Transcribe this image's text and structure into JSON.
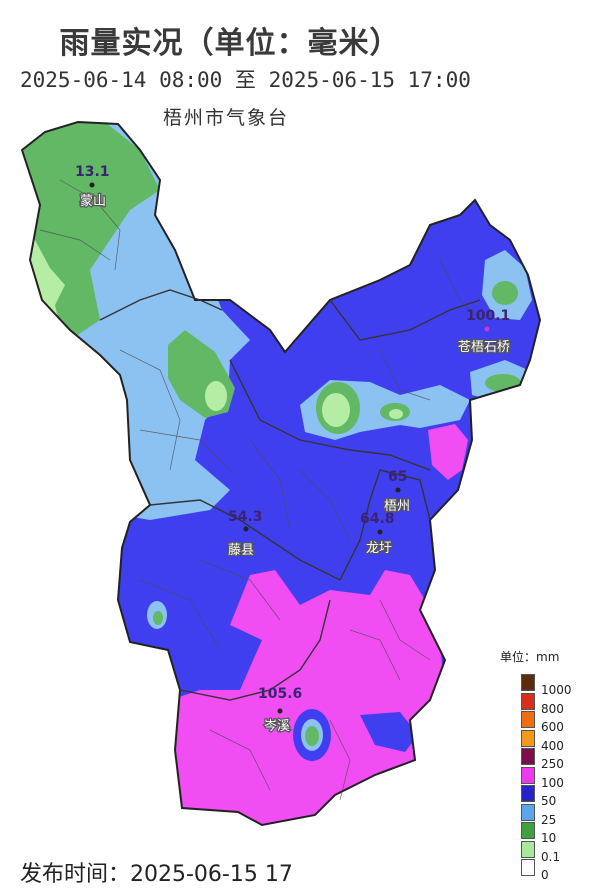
{
  "title": "雨量实况（单位：毫米）",
  "period": "2025-06-14 08:00 至 2025-06-15 17:00",
  "issuer": "梧州市气象台",
  "release_time": "发布时间：2025-06-15 17",
  "stations": [
    {
      "name": "蒙山",
      "value": "13.1"
    },
    {
      "name": "苍梧石桥",
      "value": "100.1"
    },
    {
      "name": "梧州",
      "value": "65"
    },
    {
      "name": "龙圩",
      "value": "64.8"
    },
    {
      "name": "藤县",
      "value": "54.3"
    },
    {
      "name": "岑溪",
      "value": "105.6"
    }
  ],
  "legend": {
    "title": "单位：mm",
    "classes": [
      {
        "label": "1000",
        "color": "#5a2d0c"
      },
      {
        "label": "800",
        "color": "#d6301c"
      },
      {
        "label": "600",
        "color": "#ee6d10"
      },
      {
        "label": "400",
        "color": "#f39a1d"
      },
      {
        "label": "250",
        "color": "#7a0f4a"
      },
      {
        "label": "100",
        "color": "#f039ef"
      },
      {
        "label": "50",
        "color": "#2424c8"
      },
      {
        "label": "25",
        "color": "#5aa6e8"
      },
      {
        "label": "10",
        "color": "#3ea13e"
      },
      {
        "label": "0.1",
        "color": "#a8e89a"
      },
      {
        "label": "0",
        "color": "#ffffff"
      }
    ]
  },
  "colors": {
    "band_10": "#62b865",
    "band_01": "#b4eda3",
    "band_25": "#8cc2f2",
    "band_50": "#3f3ff0",
    "band_100": "#f04ef2",
    "boundary": "#333333"
  }
}
